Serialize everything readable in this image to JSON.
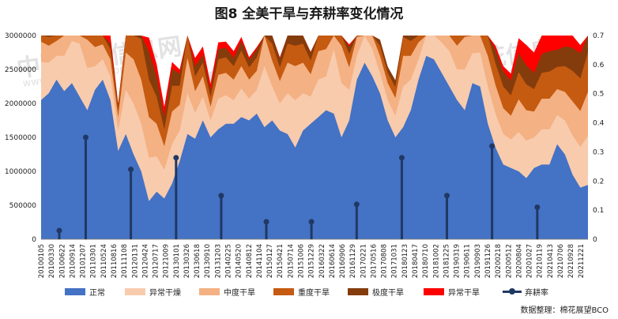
{
  "title": "图8 全美干旱与弃耕率变化情况",
  "source": "数据整理：棉花展望BCO",
  "watermark": {
    "brand": "中国棉花信息网",
    "url": "www.cottonchina.org.cn"
  },
  "chart_data": {
    "type": "area",
    "title": "图8 全美干旱与弃耕率变化情况",
    "ylim_left": [
      0,
      3000000
    ],
    "yticks_left": [
      "0",
      "500000",
      "1000000",
      "1500000",
      "2000000",
      "2500000",
      "3000000"
    ],
    "ylim_right": [
      0,
      0.7
    ],
    "yticks_right": [
      "0",
      "0.1",
      "0.2",
      "0.3",
      "0.4",
      "0.5",
      "0.6",
      "0.7"
    ],
    "x_tick_labels": [
      "20100105",
      "20100330",
      "20100622",
      "20100914",
      "20101207",
      "20110301",
      "20110524",
      "20110816",
      "20111108",
      "20120131",
      "20120424",
      "20120717",
      "20121009",
      "20130101",
      "20130326",
      "20130618",
      "20130910",
      "20131203",
      "20140225",
      "20140520",
      "20140812",
      "20141104",
      "20150127",
      "20150421",
      "20150714",
      "20151006",
      "20151229",
      "20160322",
      "20160614",
      "20160906",
      "20161129",
      "20170221",
      "20170516",
      "20170808",
      "20171031",
      "20180123",
      "20180417",
      "20180710",
      "20181002",
      "20181225",
      "20190319",
      "20190611",
      "20190903",
      "20191126",
      "20200218",
      "20200512",
      "20200804",
      "20201027",
      "20210119",
      "20210413",
      "20210706",
      "20210928",
      "20211221"
    ],
    "x_date_range": [
      "2010-01-05",
      "2022-02-15"
    ],
    "series": [
      {
        "name": "正常",
        "color": "#4472c4",
        "values": [
          2050000,
          2150000,
          2350000,
          2180000,
          2300000,
          2100000,
          1900000,
          2200000,
          2350000,
          2050000,
          1300000,
          1550000,
          1250000,
          1000000,
          560000,
          700000,
          600000,
          820000,
          1150000,
          1550000,
          1480000,
          1750000,
          1500000,
          1620000,
          1700000,
          1700000,
          1800000,
          1750000,
          1850000,
          1650000,
          1750000,
          1600000,
          1550000,
          1350000,
          1600000,
          1700000,
          1800000,
          1900000,
          1850000,
          1500000,
          1750000,
          2350000,
          2600000,
          2400000,
          2150000,
          1750000,
          1500000,
          1650000,
          1900000,
          2350000,
          2700000,
          2650000,
          2450000,
          2250000,
          2050000,
          1900000,
          2300000,
          2250000,
          1700000,
          1350000,
          1100000,
          1050000,
          1000000,
          900000,
          1050000,
          1100000,
          1100000,
          1400000,
          1250000,
          950000,
          760000,
          800000
        ]
      },
      {
        "name": "异常干燥",
        "color": "#f8cbad",
        "values": [
          560000,
          450000,
          350000,
          520000,
          620000,
          780000,
          620000,
          350000,
          300000,
          350000,
          300000,
          650000,
          750000,
          700000,
          640000,
          520000,
          420000,
          580000,
          450000,
          600000,
          380000,
          350000,
          250000,
          450000,
          420000,
          350000,
          420000,
          320000,
          350000,
          900000,
          500000,
          400000,
          600000,
          700000,
          550000,
          400000,
          550000,
          500000,
          950000,
          800000,
          450000,
          350000,
          550000,
          400000,
          300000,
          300000,
          320000,
          600000,
          450000,
          300000,
          500000,
          580000,
          450000,
          520000,
          450000,
          600000,
          440000,
          500000,
          550000,
          500000,
          450000,
          420000,
          580000,
          550000,
          450000,
          520000,
          520000,
          430000,
          500000,
          580000,
          600000,
          720000
        ]
      },
      {
        "name": "中度干旱",
        "color": "#f4b183",
        "values": [
          300000,
          250000,
          220000,
          300000,
          380000,
          450000,
          420000,
          280000,
          220000,
          250000,
          200000,
          550000,
          650000,
          650000,
          600000,
          480000,
          350000,
          480000,
          380000,
          520000,
          320000,
          300000,
          200000,
          350000,
          330000,
          300000,
          330000,
          280000,
          280000,
          600000,
          380000,
          330000,
          450000,
          500000,
          450000,
          330000,
          420000,
          400000,
          620000,
          550000,
          330000,
          280000,
          420000,
          330000,
          250000,
          250000,
          260000,
          450000,
          350000,
          250000,
          380000,
          430000,
          350000,
          400000,
          350000,
          480000,
          350000,
          400000,
          450000,
          420000,
          380000,
          350000,
          480000,
          450000,
          380000,
          450000,
          450000,
          380000,
          420000,
          500000,
          530000,
          650000
        ]
      },
      {
        "name": "重度干旱",
        "color": "#c55a11",
        "values": [
          150000,
          130000,
          100000,
          180000,
          230000,
          300000,
          300000,
          200000,
          150000,
          150000,
          120000,
          400000,
          600000,
          600000,
          550000,
          400000,
          250000,
          380000,
          280000,
          380000,
          220000,
          200000,
          150000,
          230000,
          230000,
          200000,
          230000,
          180000,
          200000,
          380000,
          250000,
          200000,
          280000,
          300000,
          280000,
          200000,
          260000,
          250000,
          350000,
          330000,
          200000,
          180000,
          250000,
          200000,
          150000,
          150000,
          160000,
          280000,
          220000,
          160000,
          240000,
          280000,
          220000,
          250000,
          220000,
          330000,
          230000,
          260000,
          300000,
          320000,
          320000,
          300000,
          400000,
          380000,
          330000,
          380000,
          400000,
          330000,
          380000,
          450000,
          480000,
          580000
        ]
      },
      {
        "name": "极度干旱",
        "color": "#843c0c",
        "values": [
          60000,
          50000,
          40000,
          80000,
          100000,
          200000,
          250000,
          150000,
          100000,
          80000,
          60000,
          300000,
          500000,
          500000,
          420000,
          300000,
          180000,
          250000,
          180000,
          250000,
          150000,
          120000,
          90000,
          150000,
          140000,
          120000,
          140000,
          110000,
          120000,
          200000,
          150000,
          130000,
          160000,
          170000,
          160000,
          120000,
          150000,
          140000,
          180000,
          170000,
          110000,
          100000,
          140000,
          110000,
          90000,
          90000,
          100000,
          160000,
          130000,
          100000,
          140000,
          160000,
          130000,
          150000,
          130000,
          200000,
          140000,
          160000,
          180000,
          200000,
          220000,
          220000,
          280000,
          280000,
          240000,
          280000,
          300000,
          250000,
          290000,
          340000,
          370000,
          450000
        ]
      },
      {
        "name": "异常干旱",
        "color": "#ff0000",
        "values": [
          0,
          0,
          0,
          0,
          0,
          50000,
          200000,
          320000,
          300000,
          200000,
          20000,
          0,
          150000,
          200000,
          200000,
          180000,
          150000,
          100000,
          60000,
          100000,
          120000,
          120000,
          100000,
          100000,
          90000,
          100000,
          60000,
          40000,
          30000,
          30000,
          20000,
          20000,
          30000,
          20000,
          20000,
          10000,
          20000,
          30000,
          40000,
          50000,
          30000,
          10000,
          10000,
          10000,
          0,
          0,
          0,
          20000,
          10000,
          0,
          0,
          10000,
          10000,
          10000,
          0,
          0,
          10000,
          20000,
          30000,
          60000,
          80000,
          100000,
          220000,
          300000,
          300000,
          280000,
          300000,
          250000,
          220000,
          200000,
          120000,
          50000
        ]
      }
    ],
    "abandonment_rate": {
      "name": "弃耕率",
      "color": "#203864",
      "x": [
        "2010-06-01",
        "2011-01-01",
        "2012-01-01",
        "2013-01-01",
        "2014-01-01",
        "2015-01-01",
        "2016-01-01",
        "2017-01-01",
        "2018-01-01",
        "2019-01-01",
        "2020-01-01",
        "2021-01-01"
      ],
      "values": [
        0.03,
        0.35,
        0.24,
        0.28,
        0.15,
        0.06,
        0.06,
        0.12,
        0.28,
        0.15,
        0.32,
        0.11
      ]
    }
  },
  "legend": [
    {
      "label": "正常",
      "kind": "box",
      "color": "#4472c4"
    },
    {
      "label": "异常干燥",
      "kind": "box",
      "color": "#f8cbad"
    },
    {
      "label": "中度干旱",
      "kind": "box",
      "color": "#f4b183"
    },
    {
      "label": "重度干旱",
      "kind": "box",
      "color": "#c55a11"
    },
    {
      "label": "极度干旱",
      "kind": "box",
      "color": "#843c0c"
    },
    {
      "label": "异常干旱",
      "kind": "box",
      "color": "#ff0000"
    },
    {
      "label": "弃耕率",
      "kind": "line",
      "color": "#203864"
    }
  ]
}
